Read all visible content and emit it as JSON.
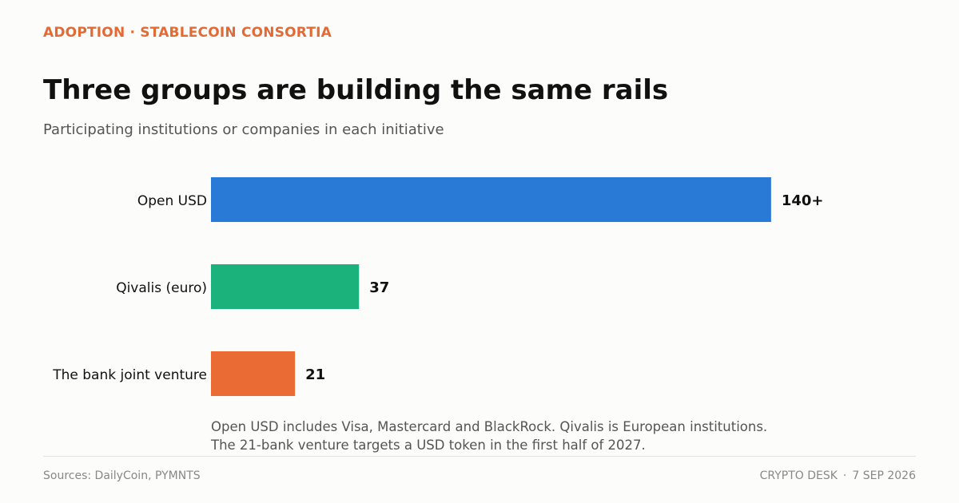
{
  "header": {
    "kicker": "ADOPTION · STABLECOIN CONSORTIA",
    "title": "Three groups are building the same rails",
    "subtitle": "Participating institutions or companies in each initiative"
  },
  "chart_data": {
    "type": "bar",
    "orientation": "horizontal",
    "categories": [
      "Open USD",
      "Qivalis (euro)",
      "The bank joint venture"
    ],
    "values": [
      140,
      37,
      21
    ],
    "data_labels": [
      "140+",
      "37",
      "21"
    ],
    "colors": [
      "#2979d6",
      "#1bb27c",
      "#eb6b35"
    ],
    "xlim": [
      0,
      163
    ],
    "grid": false,
    "legend": "none"
  },
  "notes": [
    "Open USD includes Visa, Mastercard and BlackRock. Qivalis is European institutions.",
    "The 21-bank venture targets a USD token in the first half of 2027."
  ],
  "footer": {
    "sources": "Sources: DailyCoin, PYMNTS",
    "publisher": "CRYPTO DESK",
    "separator": "·",
    "date": "7 SEP 2026"
  }
}
